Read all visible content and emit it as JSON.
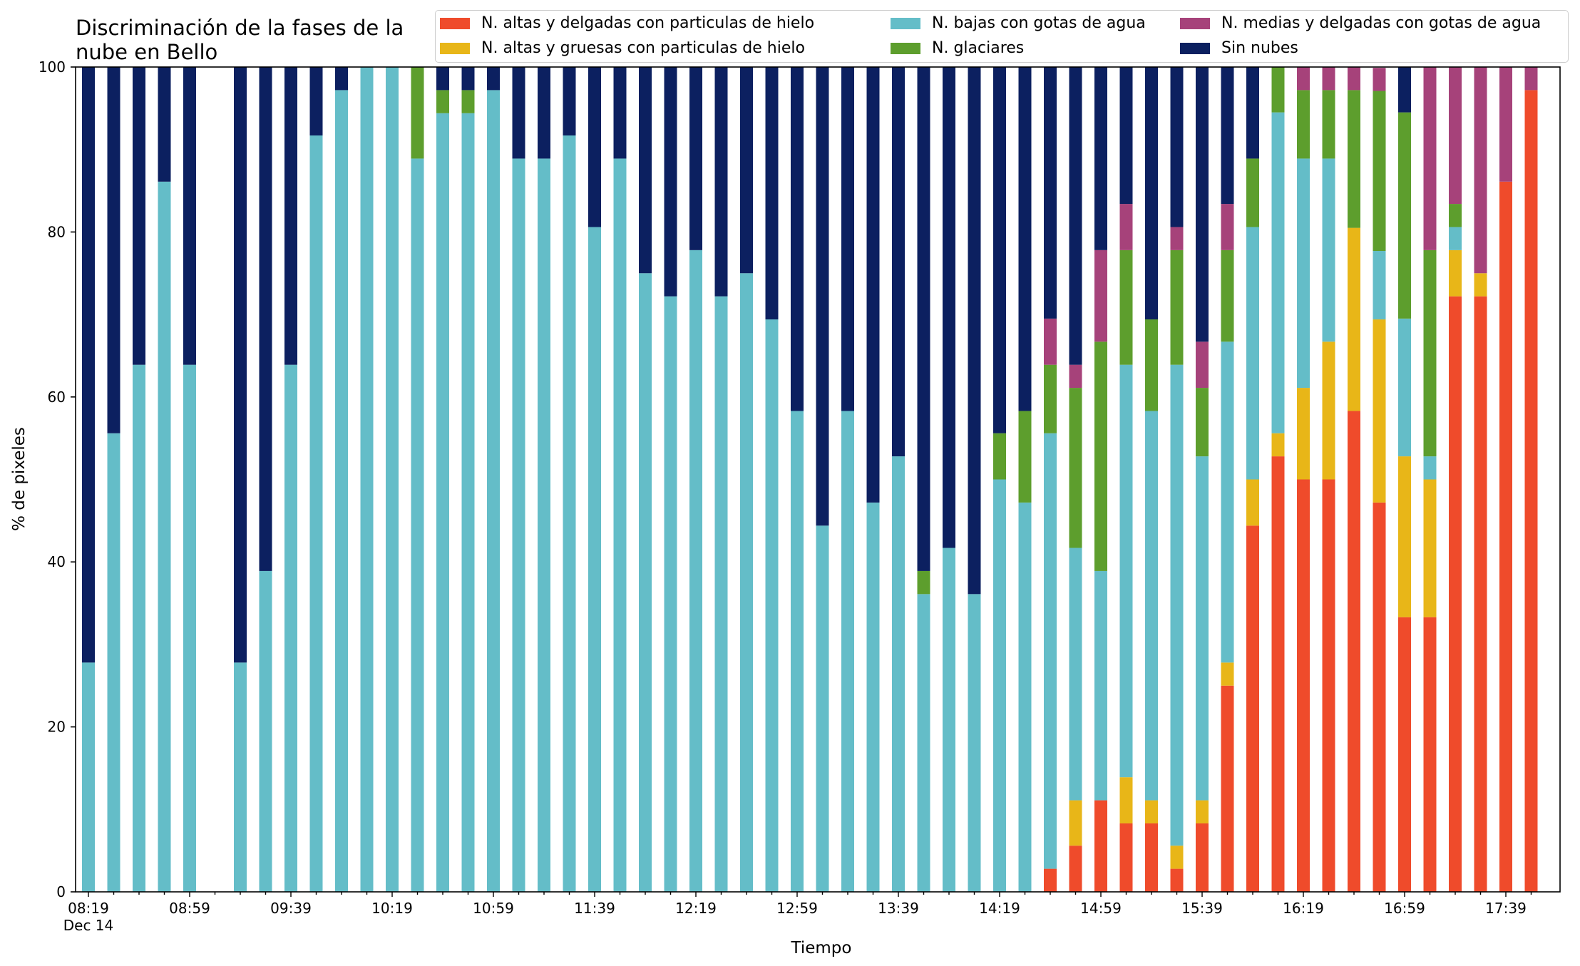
{
  "chart_data": {
    "type": "bar",
    "stacked": true,
    "title": "Discriminación de la fases de la nube en Bello",
    "title_lines": [
      "Discriminación de la fases de la",
      "nube en Bello"
    ],
    "xlabel": "Tiempo",
    "ylabel": "% de pixeles",
    "ylim": [
      0,
      100
    ],
    "yticks": [
      0,
      20,
      40,
      60,
      80,
      100
    ],
    "xtick_labels": [
      "08:19",
      "08:59",
      "09:39",
      "10:19",
      "10:59",
      "11:39",
      "12:19",
      "12:59",
      "13:39",
      "14:19",
      "14:59",
      "15:39",
      "16:19",
      "16:59",
      "17:39"
    ],
    "xtick_sublabel": "Dec 14",
    "grid": false,
    "legend_position": "top-right",
    "x": [
      "08:19",
      "08:29",
      "08:39",
      "08:49",
      "08:59",
      "09:09",
      "09:19",
      "09:29",
      "09:39",
      "09:49",
      "09:59",
      "10:09",
      "10:19",
      "10:29",
      "10:39",
      "10:49",
      "10:59",
      "11:09",
      "11:19",
      "11:29",
      "11:39",
      "11:49",
      "11:59",
      "12:09",
      "12:19",
      "12:29",
      "12:39",
      "12:49",
      "12:59",
      "13:09",
      "13:19",
      "13:29",
      "13:39",
      "13:49",
      "13:59",
      "14:09",
      "14:19",
      "14:29",
      "14:39",
      "14:49",
      "14:59",
      "15:09",
      "15:19",
      "15:29",
      "15:39",
      "15:49",
      "15:59",
      "16:09",
      "16:19",
      "16:29",
      "16:39",
      "16:49",
      "16:59",
      "17:09",
      "17:19",
      "17:29",
      "17:39",
      "17:49"
    ],
    "series": [
      {
        "name": "N. altas y delgadas con particulas de hielo",
        "color": "#ef4b2b",
        "values": [
          0,
          0,
          0,
          0,
          0,
          0,
          0,
          0,
          0,
          0,
          0,
          0,
          0,
          0,
          0,
          0,
          0,
          0,
          0,
          0,
          0,
          0,
          0,
          0,
          0,
          0,
          0,
          0,
          0,
          0,
          0,
          0,
          0,
          0,
          0,
          0,
          0,
          0,
          2.8,
          5.6,
          11.1,
          8.3,
          8.3,
          2.8,
          8.3,
          25,
          44.4,
          52.8,
          50,
          50,
          58.3,
          47.2,
          33.3,
          33.3,
          72.2,
          72.2,
          86.1,
          97.2
        ]
      },
      {
        "name": "N. altas y gruesas con particulas de hielo",
        "color": "#e8b618",
        "values": [
          0,
          0,
          0,
          0,
          0,
          0,
          0,
          0,
          0,
          0,
          0,
          0,
          0,
          0,
          0,
          0,
          0,
          0,
          0,
          0,
          0,
          0,
          0,
          0,
          0,
          0,
          0,
          0,
          0,
          0,
          0,
          0,
          0,
          0,
          0,
          0,
          0,
          0,
          0,
          5.5,
          0,
          5.6,
          2.8,
          2.8,
          2.8,
          2.8,
          5.6,
          2.8,
          11.1,
          16.7,
          22.2,
          22.2,
          19.5,
          16.7,
          5.6,
          2.8,
          0,
          0
        ]
      },
      {
        "name": "N. bajas con gotas de agua",
        "color": "#64bdc8",
        "values": [
          27.8,
          55.6,
          63.9,
          86.1,
          63.9,
          0,
          27.8,
          38.9,
          63.9,
          91.7,
          97.2,
          100,
          100,
          88.9,
          94.4,
          94.4,
          97.2,
          88.9,
          88.9,
          91.7,
          80.6,
          88.9,
          75,
          72.2,
          77.8,
          72.2,
          75,
          69.4,
          58.3,
          44.4,
          58.3,
          47.2,
          52.8,
          36.1,
          41.7,
          36.1,
          50,
          47.2,
          52.8,
          30.6,
          27.8,
          50,
          47.2,
          58.3,
          41.7,
          38.9,
          30.6,
          38.9,
          27.8,
          22.2,
          0,
          8.3,
          16.7,
          2.8,
          2.8,
          0,
          0,
          0
        ]
      },
      {
        "name": "N. glaciares",
        "color": "#5d9e2d",
        "values": [
          0,
          0,
          0,
          0,
          0,
          0,
          0,
          0,
          0,
          0,
          0,
          0,
          0,
          11.1,
          2.8,
          2.8,
          0,
          0,
          0,
          0,
          0,
          0,
          0,
          0,
          0,
          0,
          0,
          0,
          0,
          0,
          0,
          0,
          0,
          2.8,
          0,
          0,
          5.6,
          11.1,
          8.3,
          19.4,
          27.8,
          13.9,
          11.1,
          13.9,
          8.3,
          11.1,
          8.3,
          5.5,
          8.3,
          8.3,
          16.7,
          19.4,
          25,
          25,
          2.8,
          0,
          0,
          0
        ]
      },
      {
        "name": "N. medias y delgadas con gotas de agua",
        "color": "#a6427a",
        "values": [
          0,
          0,
          0,
          0,
          0,
          0,
          0,
          0,
          0,
          0,
          0,
          0,
          0,
          0,
          0,
          0,
          0,
          0,
          0,
          0,
          0,
          0,
          0,
          0,
          0,
          0,
          0,
          0,
          0,
          0,
          0,
          0,
          0,
          0,
          0,
          0,
          0,
          0,
          5.6,
          2.8,
          11.1,
          5.6,
          0,
          2.8,
          5.6,
          5.6,
          0,
          0,
          2.8,
          2.8,
          2.8,
          2.8,
          0,
          22.2,
          16.7,
          25,
          13.9,
          2.8
        ]
      },
      {
        "name": "Sin nubes",
        "color": "#0c2060",
        "values": [
          72.2,
          44.4,
          36.1,
          13.9,
          36.1,
          0,
          72.2,
          61.1,
          36.1,
          8.3,
          2.8,
          0,
          0,
          0,
          2.8,
          2.8,
          2.8,
          11.1,
          11.1,
          8.3,
          19.4,
          11.1,
          25,
          27.8,
          22.2,
          27.8,
          25,
          30.6,
          41.7,
          55.6,
          41.7,
          52.8,
          47.2,
          61.1,
          58.3,
          63.9,
          44.4,
          41.7,
          30.6,
          36.1,
          22.2,
          16.7,
          30.6,
          19.4,
          33.3,
          16.6,
          11.1,
          0,
          0,
          0,
          0,
          0,
          5.5,
          0,
          0,
          0,
          0,
          0
        ]
      }
    ]
  }
}
